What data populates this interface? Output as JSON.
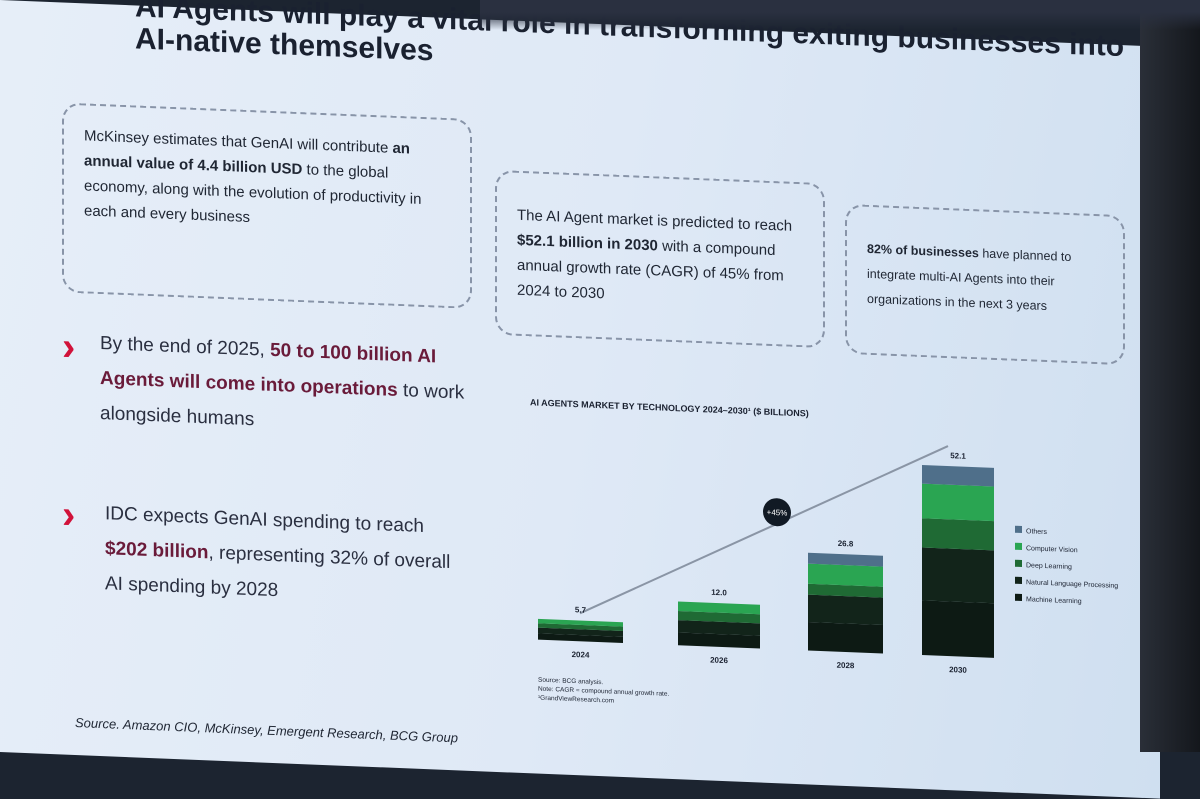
{
  "title": "AI Agents will play a vital role in transforming exiting businesses into AI-native themselves",
  "boxes": [
    {
      "pre": "McKinsey estimates that GenAI will contribute ",
      "bold": "an annual value of 4.4 billion USD",
      "post": " to the global economy, along with the evolution of productivity in each and every business"
    },
    {
      "pre": "The AI Agent market is predicted to reach ",
      "bold": "$52.1 billion in 2030",
      "post": " with a compound annual growth rate (CAGR) of 45% from 2024 to 2030"
    },
    {
      "pre": "",
      "bold": "82% of businesses",
      "post": " have planned to integrate multi-AI Agents into their organizations in the next 3 years"
    }
  ],
  "highlights": [
    {
      "pre": "By the end of 2025, ",
      "em": "50 to 100 billion AI Agents will come into operations",
      "post": " to work alongside humans"
    },
    {
      "pre": "IDC expects GenAI spending to reach ",
      "em": "$202 billion",
      "post": ", representing 32% of overall AI spending by 2028"
    }
  ],
  "source": "Source. Amazon CIO, McKinsey, Emergent Research, BCG Group",
  "chart_data": {
    "type": "bar",
    "stacked": true,
    "title": "AI AGENTS MARKET BY TECHNOLOGY 2024–2030¹ ($ BILLIONS)",
    "categories": [
      "2024",
      "2026",
      "2028",
      "2030"
    ],
    "totals": [
      "5.7",
      "12.0",
      "26.8",
      "52.1"
    ],
    "series": [
      {
        "name": "Machine Learning",
        "color": "#0d1a14",
        "values": [
          1.7,
          3.5,
          7.8,
          15.0
        ]
      },
      {
        "name": "Natural Language Processing",
        "color": "#12241a",
        "values": [
          1.6,
          3.4,
          7.5,
          14.5
        ]
      },
      {
        "name": "Deep Learning",
        "color": "#1f6a34",
        "values": [
          1.2,
          2.5,
          3.0,
          8.0
        ]
      },
      {
        "name": "Computer Vision",
        "color": "#2aa552",
        "values": [
          1.2,
          2.6,
          5.5,
          9.5
        ]
      },
      {
        "name": "Others",
        "color": "#4f6f8a",
        "values": [
          0,
          0,
          3.0,
          5.1
        ]
      }
    ],
    "annotation": "+45%",
    "notes": [
      "Source: BCG analysis.",
      "Note: CAGR = compound annual growth rate.",
      "¹GrandViewResearch.com"
    ],
    "grid": false,
    "legend": "right"
  }
}
